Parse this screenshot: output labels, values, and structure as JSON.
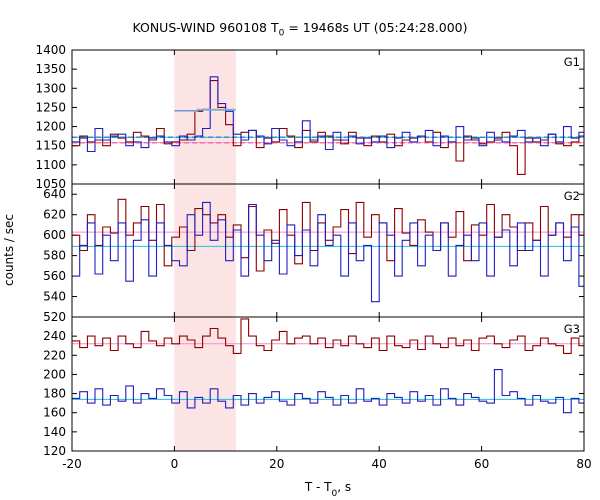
{
  "title": {
    "prefix": "KONUS-WIND 960108 T",
    "sub": "0",
    "suffix": " = 19468s UT (05:24:28.000)"
  },
  "xlabel": {
    "prefix": "T - T",
    "sub": "0",
    "suffix": ", s"
  },
  "ylabel": "counts / sec",
  "chart_data": {
    "type": "line",
    "x_range": [
      -20,
      80
    ],
    "x_ticks": [
      -20,
      0,
      20,
      40,
      60,
      80
    ],
    "highlight_interval": [
      0,
      12
    ],
    "bin_width": 1.5,
    "bin_start": -20,
    "colors": {
      "dark_red": "#8b0000",
      "blue": "#1f1fbf",
      "pink": "#ff88cc",
      "cyan": "#20c0d8",
      "highlight": "#fde4e4"
    },
    "panels": [
      {
        "name": "G1",
        "ylim": [
          1050,
          1400
        ],
        "yticks": [
          1050,
          1100,
          1150,
          1200,
          1250,
          1300,
          1350,
          1400
        ],
        "series": [
          {
            "color": "dark_red",
            "values": [
              1150,
              1175,
              1160,
              1165,
              1150,
              1180,
              1170,
              1160,
              1185,
              1175,
              1165,
              1195,
              1155,
              1160,
              1165,
              1180,
              1240,
              1245,
              1320,
              1250,
              1205,
              1150,
              1185,
              1190,
              1145,
              1170,
              1160,
              1195,
              1175,
              1145,
              1190,
              1160,
              1185,
              1175,
              1165,
              1155,
              1185,
              1170,
              1150,
              1175,
              1160,
              1180,
              1150,
              1165,
              1170,
              1175,
              1160,
              1185,
              1145,
              1160,
              1110,
              1175,
              1165,
              1155,
              1160,
              1170,
              1185,
              1150,
              1075,
              1170,
              1160,
              1165,
              1180,
              1155,
              1150,
              1160,
              1175
            ]
          },
          {
            "color": "blue",
            "values": [
              1160,
              1170,
              1135,
              1195,
              1165,
              1175,
              1180,
              1150,
              1160,
              1145,
              1170,
              1175,
              1160,
              1150,
              1175,
              1165,
              1175,
              1195,
              1330,
              1260,
              1240,
              1180,
              1165,
              1190,
              1175,
              1155,
              1195,
              1165,
              1150,
              1160,
              1215,
              1165,
              1175,
              1140,
              1185,
              1165,
              1175,
              1155,
              1170,
              1160,
              1175,
              1145,
              1170,
              1185,
              1160,
              1175,
              1190,
              1150,
              1175,
              1160,
              1200,
              1165,
              1170,
              1150,
              1185,
              1165,
              1160,
              1175,
              1190,
              1160,
              1170,
              1150,
              1180,
              1160,
              1200,
              1170,
              1185
            ]
          },
          {
            "color": "pink",
            "values": [
              1240,
              1240,
              1240,
              1245,
              1245,
              1245,
              1245,
              1245
            ]
          },
          {
            "color": "cyan",
            "values": [
              1242,
              1242,
              1242,
              1243,
              1243,
              1243,
              1243,
              1243
            ]
          }
        ],
        "fits": [
          {
            "color": "dark_red",
            "value": 1158,
            "dashed": true
          },
          {
            "color": "blue",
            "value": 1172,
            "dashed": true
          },
          {
            "color": "pink",
            "value": 1158,
            "dashed": false
          },
          {
            "color": "cyan",
            "value": 1172,
            "dashed": false
          }
        ]
      },
      {
        "name": "G2",
        "ylim": [
          520,
          650
        ],
        "yticks": [
          520,
          540,
          560,
          580,
          600,
          620,
          640
        ],
        "series": [
          {
            "color": "dark_red",
            "values": [
              600,
              585,
              620,
              590,
              608,
              602,
              635,
              600,
              612,
              628,
              595,
              630,
              570,
              598,
              608,
              585,
              626,
              620,
              612,
              620,
              598,
              610,
              578,
              628,
              565,
              605,
              592,
              625,
              600,
              572,
              632,
              585,
              612,
              595,
              608,
              625,
              582,
              632,
              598,
              620,
              612,
              575,
              626,
              602,
              590,
              615,
              603,
              585,
              612,
              598,
              623,
              575,
              610,
              600,
              630,
              598,
              620,
              608,
              585,
              612,
              595,
              628,
              600,
              612,
              598,
              620,
              600
            ]
          },
          {
            "color": "blue",
            "values": [
              560,
              590,
              612,
              562,
              600,
              575,
              612,
              555,
              595,
              615,
              560,
              612,
              590,
              575,
              570,
              620,
              600,
              632,
              595,
              615,
              575,
              605,
              560,
              630,
              600,
              575,
              595,
              562,
              610,
              580,
              605,
              570,
              620,
              590,
              600,
              560,
              612,
              575,
              590,
              535,
              612,
              600,
              560,
              595,
              612,
              570,
              600,
              585,
              612,
              560,
              590,
              600,
              575,
              612,
              560,
              598,
              605,
              570,
              612,
              585,
              595,
              560,
              600,
              612,
              575,
              608,
              550
            ]
          }
        ],
        "fits": [
          {
            "color": "pink",
            "value": 603,
            "dashed": false
          },
          {
            "color": "cyan",
            "value": 589,
            "dashed": false
          }
        ]
      },
      {
        "name": "G3",
        "ylim": [
          120,
          260
        ],
        "yticks": [
          120,
          140,
          160,
          180,
          200,
          220,
          240
        ],
        "series": [
          {
            "color": "dark_red",
            "values": [
              235,
              228,
              240,
              230,
              238,
              225,
              240,
              232,
              228,
              245,
              235,
              230,
              238,
              232,
              240,
              236,
              228,
              240,
              248,
              238,
              230,
              222,
              258,
              240,
              230,
              225,
              236,
              245,
              232,
              238,
              240,
              232,
              238,
              228,
              236,
              230,
              240,
              232,
              228,
              238,
              225,
              240,
              230,
              228,
              236,
              226,
              240,
              232,
              228,
              238,
              230,
              236,
              225,
              238,
              240,
              232,
              228,
              236,
              240,
              225,
              230,
              238,
              232,
              230,
              222,
              238,
              230
            ]
          },
          {
            "color": "blue",
            "values": [
              175,
              182,
              170,
              185,
              168,
              178,
              172,
              188,
              170,
              180,
              175,
              185,
              178,
              170,
              182,
              165,
              176,
              170,
              185,
              172,
              165,
              178,
              168,
              180,
              170,
              176,
              182,
              172,
              168,
              180,
              175,
              170,
              182,
              176,
              168,
              178,
              170,
              185,
              172,
              175,
              168,
              180,
              176,
              170,
              182,
              172,
              178,
              168,
              185,
              175,
              168,
              180,
              176,
              172,
              170,
              205,
              178,
              182,
              175,
              168,
              178,
              172,
              170,
              176,
              160,
              175,
              170
            ]
          }
        ],
        "fits": [
          {
            "color": "pink",
            "value": 232,
            "dashed": false
          },
          {
            "color": "cyan",
            "value": 174,
            "dashed": false
          }
        ]
      }
    ]
  }
}
